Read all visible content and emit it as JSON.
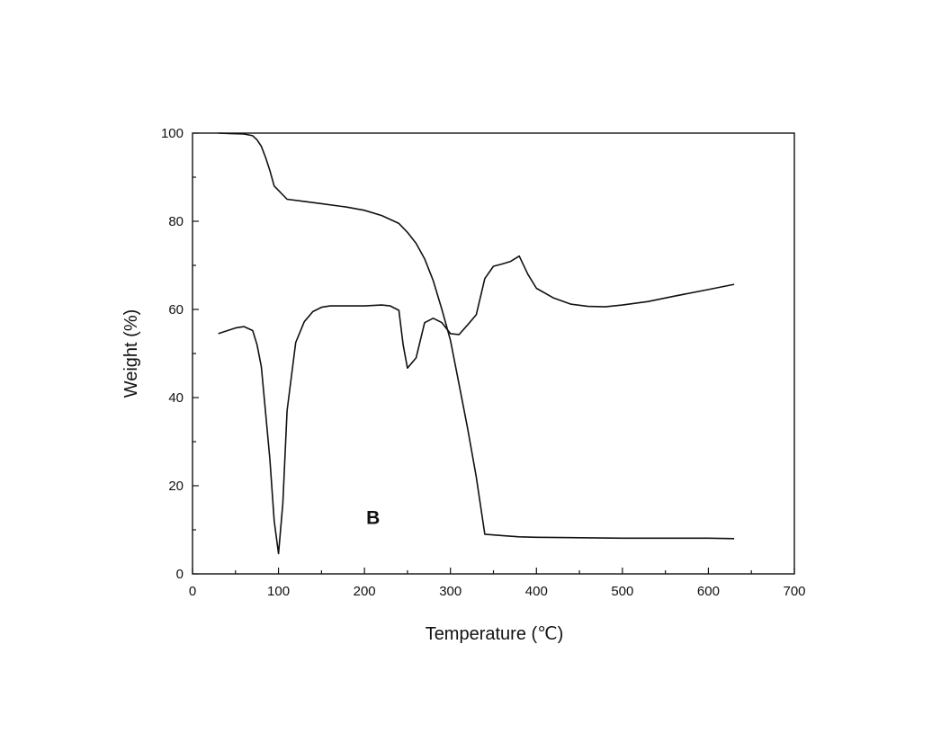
{
  "chart_data": {
    "type": "line",
    "title": "",
    "xlabel": "Temperature (℃)",
    "ylabel": "Weight (%)",
    "xlim": [
      0,
      700
    ],
    "ylim": [
      0,
      100
    ],
    "x_ticks": [
      0,
      100,
      200,
      300,
      400,
      500,
      600,
      700
    ],
    "y_ticks": [
      0,
      20,
      40,
      60,
      80,
      100
    ],
    "grid": false,
    "legend": "none",
    "annotation": {
      "text": "B",
      "x": 210,
      "y": 13
    },
    "series": [
      {
        "x": [
          30,
          60,
          70,
          75,
          80,
          85,
          90,
          95,
          100,
          110,
          130,
          150,
          180,
          200,
          220,
          240,
          250,
          260,
          270,
          280,
          290,
          300,
          310,
          320,
          330,
          340,
          360,
          380,
          400,
          450,
          500,
          550,
          600,
          630
        ],
        "y": [
          100,
          99.8,
          99.4,
          98.5,
          97,
          94.5,
          91.5,
          88,
          87,
          85,
          84.5,
          84,
          83.2,
          82.5,
          81.3,
          79.5,
          77.5,
          75,
          71.5,
          66.5,
          60,
          53,
          43,
          33,
          22,
          9,
          8.7,
          8.4,
          8.3,
          8.2,
          8.1,
          8.1,
          8.1,
          8
        ]
      },
      {
        "x": [
          30,
          50,
          60,
          70,
          75,
          80,
          90,
          95,
          100,
          105,
          110,
          120,
          130,
          140,
          150,
          160,
          180,
          200,
          220,
          230,
          240,
          245,
          250,
          260,
          270,
          280,
          290,
          300,
          310,
          320,
          330,
          340,
          350,
          360,
          370,
          380,
          390,
          400,
          420,
          440,
          460,
          480,
          500,
          530,
          560,
          600,
          630
        ],
        "y": [
          54.5,
          55.8,
          56.1,
          55.2,
          52,
          47,
          26,
          12,
          4.6,
          16,
          37,
          52.5,
          57.2,
          59.5,
          60.5,
          60.8,
          60.8,
          60.8,
          61,
          60.8,
          59.8,
          52,
          46.7,
          49,
          57,
          58,
          57,
          54.5,
          54.3,
          56.5,
          58.8,
          67,
          69.8,
          70.3,
          70.9,
          72.1,
          68,
          64.8,
          62.6,
          61.2,
          60.7,
          60.6,
          61,
          61.8,
          63,
          64.5,
          65.7
        ]
      }
    ]
  }
}
